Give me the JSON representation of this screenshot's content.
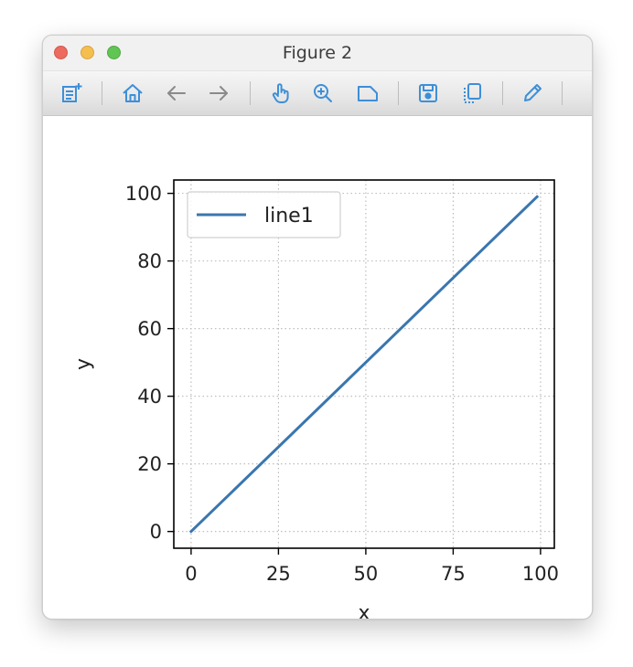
{
  "window": {
    "title": "Figure 2"
  },
  "toolbar": {
    "icons": [
      "new-figure-icon",
      "home-icon",
      "back-arrow-icon",
      "forward-arrow-icon",
      "pan-hand-icon",
      "zoom-magnifier-icon",
      "subplots-configure-icon",
      "save-disk-icon",
      "copy-clipboard-icon",
      "edit-pencil-icon"
    ],
    "icon_color": "#3d8fd8"
  },
  "chart_data": {
    "type": "line",
    "title": "",
    "xlabel": "x",
    "ylabel": "y",
    "xlim": [
      -4.95,
      103.95
    ],
    "ylim": [
      -4.95,
      103.95
    ],
    "xticks": [
      0,
      25,
      50,
      75,
      100
    ],
    "yticks": [
      0,
      20,
      40,
      60,
      80,
      100
    ],
    "xtick_labels": [
      "0",
      "25",
      "50",
      "75",
      "100"
    ],
    "ytick_labels": [
      "0",
      "20",
      "40",
      "60",
      "80",
      "100"
    ],
    "grid": true,
    "grid_style": "dotted",
    "legend_position": "upper-left",
    "series": [
      {
        "name": "line1",
        "color": "#3a76af",
        "x": [
          0,
          99
        ],
        "y": [
          0,
          99
        ]
      }
    ]
  }
}
